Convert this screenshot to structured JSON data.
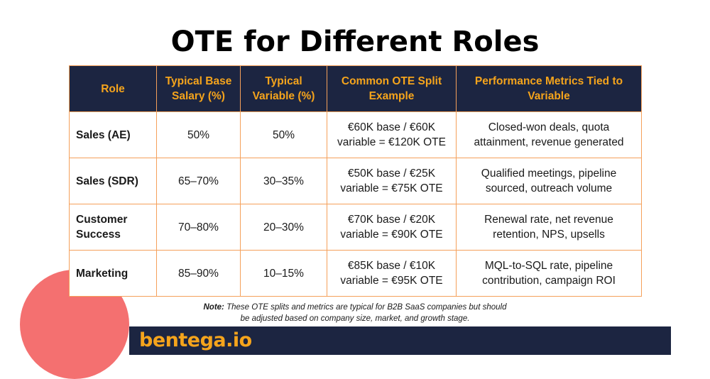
{
  "title": "OTE for Different Roles",
  "table": {
    "headers": [
      "Role",
      "Typical Base Salary (%)",
      "Typical Variable (%)",
      "Common OTE Split Example",
      "Performance Metrics Tied to Variable"
    ],
    "rows": [
      [
        "Sales (AE)",
        "50%",
        "50%",
        "€60K base / €60K variable = €120K OTE",
        "Closed-won deals, quota attainment, revenue generated"
      ],
      [
        "Sales (SDR)",
        "65–70%",
        "30–35%",
        "€50K base / €25K variable = €75K OTE",
        "Qualified meetings, pipeline sourced, outreach volume"
      ],
      [
        "Customer Success",
        "70–80%",
        "20–30%",
        "€70K base / €20K variable = €90K OTE",
        "Renewal rate, net revenue retention, NPS, upsells"
      ],
      [
        "Marketing",
        "85–90%",
        "10–15%",
        "€85K base / €10K variable = €95K OTE",
        "MQL-to-SQL rate, pipeline contribution, campaign ROI"
      ]
    ]
  },
  "note": {
    "label": "Note:",
    "text": "These OTE splits and metrics are typical for B2B SaaS companies but should be adjusted based on company size, market, and growth stage."
  },
  "brand": "bentega.io",
  "colors": {
    "header_bg": "#1c2541",
    "header_text": "#f5a41c",
    "border": "#f5a05a",
    "decor_circle": "#f47070",
    "brand": "#f5a41c"
  }
}
